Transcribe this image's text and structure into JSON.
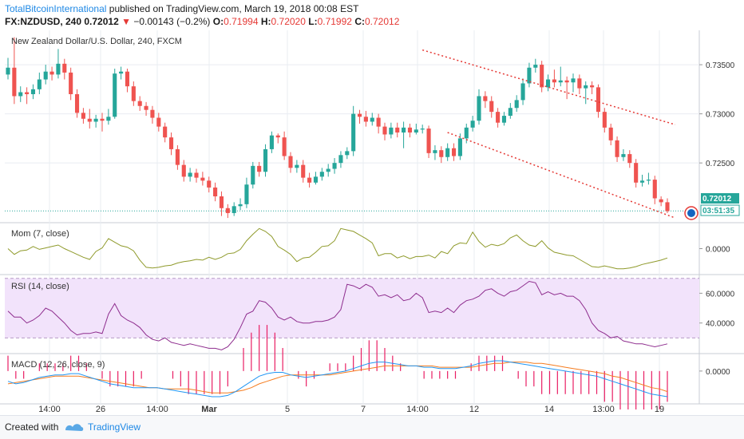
{
  "header": {
    "author": "TotalBitcoinInternational",
    "published": "published on TradingView.com, March 19, 2018 00:08 EST",
    "symbol": "FX:NZDUSD, 240",
    "last": "0.72012",
    "change_arrow": "▼",
    "change": "−0.00143 (−0.2%)",
    "o_label": "O:",
    "o": "0.71994",
    "h_label": "H:",
    "h": "0.72020",
    "l_label": "L:",
    "l": "0.71992",
    "c_label": "C:",
    "c": "0.72012"
  },
  "footer": {
    "created_with": "Created with",
    "brand": "TradingView"
  },
  "colors": {
    "up": "#26a69a",
    "down": "#ef5350",
    "grid": "#e9ecf2",
    "mom": "#8f9a2b",
    "rsi": "#8e2d8e",
    "rsi_band": "#f2e3fb",
    "macd": "#2196f3",
    "signal": "#f57c1f",
    "hist": "#e91e63",
    "trend": "#e53935",
    "price_line": "#26a69a",
    "price_tag": "#26a69a",
    "brand": "#1e88e5"
  },
  "chart_data": {
    "type": "candlestick",
    "title": "New Zealand Dollar/U.S. Dollar, 240, FXCM",
    "price_axis": {
      "ticks": [
        "0.73500",
        "0.73000",
        "0.72500"
      ],
      "last_price": "0.72012",
      "countdown": "03:51:35",
      "ylim": [
        0.719,
        0.7385
      ]
    },
    "x_axis": {
      "labels": [
        "14:00",
        "26",
        "14:00",
        "Mar",
        "5",
        "7",
        "14:00",
        "12",
        "14",
        "13:00",
        "19"
      ]
    },
    "candles": [
      {
        "o": 0.734,
        "c": 0.7347,
        "h": 0.7357,
        "l": 0.7335
      },
      {
        "o": 0.7347,
        "c": 0.7318,
        "h": 0.7378,
        "l": 0.731
      },
      {
        "o": 0.7318,
        "c": 0.7322,
        "h": 0.7328,
        "l": 0.7312
      },
      {
        "o": 0.7322,
        "c": 0.732,
        "h": 0.7327,
        "l": 0.731
      },
      {
        "o": 0.732,
        "c": 0.7325,
        "h": 0.733,
        "l": 0.7315
      },
      {
        "o": 0.7325,
        "c": 0.7335,
        "h": 0.7342,
        "l": 0.732
      },
      {
        "o": 0.7335,
        "c": 0.7343,
        "h": 0.735,
        "l": 0.733
      },
      {
        "o": 0.7343,
        "c": 0.734,
        "h": 0.7348,
        "l": 0.7334
      },
      {
        "o": 0.734,
        "c": 0.7351,
        "h": 0.7366,
        "l": 0.7336
      },
      {
        "o": 0.7351,
        "c": 0.7342,
        "h": 0.7356,
        "l": 0.7335
      },
      {
        "o": 0.7342,
        "c": 0.732,
        "h": 0.7347,
        "l": 0.7314
      },
      {
        "o": 0.732,
        "c": 0.7301,
        "h": 0.7325,
        "l": 0.7296
      },
      {
        "o": 0.7301,
        "c": 0.7295,
        "h": 0.7306,
        "l": 0.729
      },
      {
        "o": 0.7295,
        "c": 0.7292,
        "h": 0.7305,
        "l": 0.7285
      },
      {
        "o": 0.7292,
        "c": 0.7295,
        "h": 0.7299,
        "l": 0.7286
      },
      {
        "o": 0.7295,
        "c": 0.7293,
        "h": 0.7301,
        "l": 0.7282
      },
      {
        "o": 0.7293,
        "c": 0.7297,
        "h": 0.7305,
        "l": 0.7289
      },
      {
        "o": 0.7297,
        "c": 0.7341,
        "h": 0.7346,
        "l": 0.7295
      },
      {
        "o": 0.7341,
        "c": 0.7343,
        "h": 0.7348,
        "l": 0.7335
      },
      {
        "o": 0.7343,
        "c": 0.7328,
        "h": 0.7346,
        "l": 0.7322
      },
      {
        "o": 0.7328,
        "c": 0.7313,
        "h": 0.7333,
        "l": 0.7308
      },
      {
        "o": 0.7313,
        "c": 0.7308,
        "h": 0.7318,
        "l": 0.7303
      },
      {
        "o": 0.7308,
        "c": 0.7304,
        "h": 0.7312,
        "l": 0.7298
      },
      {
        "o": 0.7304,
        "c": 0.7296,
        "h": 0.7308,
        "l": 0.729
      },
      {
        "o": 0.7296,
        "c": 0.7287,
        "h": 0.7301,
        "l": 0.7282
      },
      {
        "o": 0.7287,
        "c": 0.7276,
        "h": 0.7291,
        "l": 0.7271
      },
      {
        "o": 0.7276,
        "c": 0.7264,
        "h": 0.7281,
        "l": 0.7258
      },
      {
        "o": 0.7264,
        "c": 0.7248,
        "h": 0.7268,
        "l": 0.7243
      },
      {
        "o": 0.7248,
        "c": 0.7236,
        "h": 0.7253,
        "l": 0.7231
      },
      {
        "o": 0.7236,
        "c": 0.724,
        "h": 0.7245,
        "l": 0.7231
      },
      {
        "o": 0.724,
        "c": 0.7235,
        "h": 0.7244,
        "l": 0.723
      },
      {
        "o": 0.7235,
        "c": 0.7232,
        "h": 0.7241,
        "l": 0.7227
      },
      {
        "o": 0.7232,
        "c": 0.7225,
        "h": 0.7236,
        "l": 0.722
      },
      {
        "o": 0.7225,
        "c": 0.7216,
        "h": 0.723,
        "l": 0.7211
      },
      {
        "o": 0.7216,
        "c": 0.7204,
        "h": 0.7221,
        "l": 0.7196
      },
      {
        "o": 0.7204,
        "c": 0.7199,
        "h": 0.7208,
        "l": 0.7194
      },
      {
        "o": 0.7199,
        "c": 0.7206,
        "h": 0.721,
        "l": 0.7196
      },
      {
        "o": 0.7206,
        "c": 0.7208,
        "h": 0.7214,
        "l": 0.7202
      },
      {
        "o": 0.7208,
        "c": 0.7228,
        "h": 0.7235,
        "l": 0.7204
      },
      {
        "o": 0.7228,
        "c": 0.7247,
        "h": 0.7251,
        "l": 0.7224
      },
      {
        "o": 0.7247,
        "c": 0.7241,
        "h": 0.7251,
        "l": 0.7236
      },
      {
        "o": 0.7241,
        "c": 0.7264,
        "h": 0.7269,
        "l": 0.7236
      },
      {
        "o": 0.7264,
        "c": 0.7278,
        "h": 0.7282,
        "l": 0.726
      },
      {
        "o": 0.7278,
        "c": 0.7276,
        "h": 0.728,
        "l": 0.727
      },
      {
        "o": 0.7276,
        "c": 0.7257,
        "h": 0.7282,
        "l": 0.7253
      },
      {
        "o": 0.7257,
        "c": 0.7245,
        "h": 0.7261,
        "l": 0.724
      },
      {
        "o": 0.7245,
        "c": 0.7248,
        "h": 0.7253,
        "l": 0.724
      },
      {
        "o": 0.7248,
        "c": 0.7235,
        "h": 0.7253,
        "l": 0.723
      },
      {
        "o": 0.7235,
        "c": 0.723,
        "h": 0.724,
        "l": 0.7225
      },
      {
        "o": 0.723,
        "c": 0.7236,
        "h": 0.7241,
        "l": 0.7228
      },
      {
        "o": 0.7236,
        "c": 0.7241,
        "h": 0.7245,
        "l": 0.7232
      },
      {
        "o": 0.7241,
        "c": 0.7244,
        "h": 0.7249,
        "l": 0.7236
      },
      {
        "o": 0.7244,
        "c": 0.725,
        "h": 0.7255,
        "l": 0.7239
      },
      {
        "o": 0.725,
        "c": 0.7258,
        "h": 0.7262,
        "l": 0.7245
      },
      {
        "o": 0.7258,
        "c": 0.7262,
        "h": 0.7266,
        "l": 0.7254
      },
      {
        "o": 0.7262,
        "c": 0.73,
        "h": 0.7308,
        "l": 0.7257
      },
      {
        "o": 0.73,
        "c": 0.7297,
        "h": 0.7304,
        "l": 0.729
      },
      {
        "o": 0.7297,
        "c": 0.7292,
        "h": 0.7303,
        "l": 0.7287
      },
      {
        "o": 0.7292,
        "c": 0.7296,
        "h": 0.7301,
        "l": 0.7288
      },
      {
        "o": 0.7296,
        "c": 0.7287,
        "h": 0.73,
        "l": 0.728
      },
      {
        "o": 0.7287,
        "c": 0.7279,
        "h": 0.7291,
        "l": 0.7273
      },
      {
        "o": 0.7279,
        "c": 0.7286,
        "h": 0.7291,
        "l": 0.7275
      },
      {
        "o": 0.7286,
        "c": 0.7281,
        "h": 0.7291,
        "l": 0.7276
      },
      {
        "o": 0.7281,
        "c": 0.7286,
        "h": 0.7292,
        "l": 0.7265
      },
      {
        "o": 0.7286,
        "c": 0.7281,
        "h": 0.729,
        "l": 0.7276
      },
      {
        "o": 0.7281,
        "c": 0.7284,
        "h": 0.729,
        "l": 0.7279
      },
      {
        "o": 0.7284,
        "c": 0.7285,
        "h": 0.7289,
        "l": 0.728
      },
      {
        "o": 0.7285,
        "c": 0.726,
        "h": 0.7288,
        "l": 0.7255
      },
      {
        "o": 0.726,
        "c": 0.7263,
        "h": 0.7268,
        "l": 0.7253
      },
      {
        "o": 0.7263,
        "c": 0.7256,
        "h": 0.7267,
        "l": 0.725
      },
      {
        "o": 0.7256,
        "c": 0.7265,
        "h": 0.727,
        "l": 0.7252
      },
      {
        "o": 0.7265,
        "c": 0.7257,
        "h": 0.727,
        "l": 0.7252
      },
      {
        "o": 0.7257,
        "c": 0.7275,
        "h": 0.728,
        "l": 0.7253
      },
      {
        "o": 0.7275,
        "c": 0.7286,
        "h": 0.729,
        "l": 0.727
      },
      {
        "o": 0.7286,
        "c": 0.7293,
        "h": 0.7298,
        "l": 0.7282
      },
      {
        "o": 0.7293,
        "c": 0.7318,
        "h": 0.7325,
        "l": 0.7289
      },
      {
        "o": 0.7318,
        "c": 0.7313,
        "h": 0.7323,
        "l": 0.7306
      },
      {
        "o": 0.7313,
        "c": 0.7302,
        "h": 0.7318,
        "l": 0.7296
      },
      {
        "o": 0.7302,
        "c": 0.7291,
        "h": 0.7306,
        "l": 0.7286
      },
      {
        "o": 0.7291,
        "c": 0.7298,
        "h": 0.7302,
        "l": 0.7288
      },
      {
        "o": 0.7298,
        "c": 0.7306,
        "h": 0.7311,
        "l": 0.7295
      },
      {
        "o": 0.7306,
        "c": 0.7314,
        "h": 0.7319,
        "l": 0.7302
      },
      {
        "o": 0.7314,
        "c": 0.7331,
        "h": 0.7336,
        "l": 0.7309
      },
      {
        "o": 0.7331,
        "c": 0.7347,
        "h": 0.7352,
        "l": 0.7327
      },
      {
        "o": 0.7347,
        "c": 0.735,
        "h": 0.7356,
        "l": 0.7342
      },
      {
        "o": 0.735,
        "c": 0.7327,
        "h": 0.7354,
        "l": 0.7322
      },
      {
        "o": 0.7327,
        "c": 0.7335,
        "h": 0.734,
        "l": 0.7323
      },
      {
        "o": 0.7335,
        "c": 0.7332,
        "h": 0.7345,
        "l": 0.7327
      },
      {
        "o": 0.7332,
        "c": 0.7334,
        "h": 0.7348,
        "l": 0.7328
      },
      {
        "o": 0.7334,
        "c": 0.7332,
        "h": 0.7338,
        "l": 0.7315
      },
      {
        "o": 0.7332,
        "c": 0.7336,
        "h": 0.7341,
        "l": 0.7322
      },
      {
        "o": 0.7336,
        "c": 0.7326,
        "h": 0.734,
        "l": 0.732
      },
      {
        "o": 0.7326,
        "c": 0.7329,
        "h": 0.7333,
        "l": 0.731
      },
      {
        "o": 0.7329,
        "c": 0.7327,
        "h": 0.7333,
        "l": 0.732
      },
      {
        "o": 0.7327,
        "c": 0.7302,
        "h": 0.733,
        "l": 0.7296
      },
      {
        "o": 0.7302,
        "c": 0.7286,
        "h": 0.7306,
        "l": 0.7281
      },
      {
        "o": 0.7286,
        "c": 0.7273,
        "h": 0.729,
        "l": 0.7268
      },
      {
        "o": 0.7273,
        "c": 0.7256,
        "h": 0.7277,
        "l": 0.7251
      },
      {
        "o": 0.7256,
        "c": 0.7259,
        "h": 0.7264,
        "l": 0.7252
      },
      {
        "o": 0.7259,
        "c": 0.725,
        "h": 0.7263,
        "l": 0.7245
      },
      {
        "o": 0.725,
        "c": 0.723,
        "h": 0.7254,
        "l": 0.7225
      },
      {
        "o": 0.723,
        "c": 0.7232,
        "h": 0.7238,
        "l": 0.7226
      },
      {
        "o": 0.7232,
        "c": 0.7233,
        "h": 0.724,
        "l": 0.7228
      },
      {
        "o": 0.7233,
        "c": 0.7214,
        "h": 0.7237,
        "l": 0.7208
      },
      {
        "o": 0.7213,
        "c": 0.721,
        "h": 0.7216,
        "l": 0.7206
      },
      {
        "o": 0.721,
        "c": 0.7201,
        "h": 0.7214,
        "l": 0.7199
      }
    ],
    "trendlines": [
      {
        "x1": 66,
        "y1": 0.7365,
        "x2": 106,
        "y2": 0.7289
      },
      {
        "x1": 70,
        "y1": 0.7281,
        "x2": 106,
        "y2": 0.7194
      }
    ],
    "indicators": {
      "mom": {
        "label": "Mom (7, close)",
        "ticks": [
          "0.0000"
        ],
        "ylim": [
          -0.0035,
          0.0035
        ],
        "values": [
          0.0,
          -0.0008,
          -0.0003,
          -0.0002,
          0.0003,
          -0.0001,
          0.0001,
          0.0003,
          0.0005,
          0.0,
          -0.0004,
          -0.0008,
          -0.0012,
          -0.0015,
          -0.0004,
          0.0001,
          0.0014,
          0.0009,
          0.0004,
          0.0002,
          -0.0003,
          -0.0016,
          -0.0026,
          -0.0027,
          -0.0026,
          -0.0024,
          -0.0023,
          -0.002,
          -0.0018,
          -0.0017,
          -0.0015,
          -0.0016,
          -0.0012,
          -0.0015,
          -0.0012,
          -0.0007,
          -0.0006,
          -0.0001,
          0.0011,
          0.002,
          0.0028,
          0.0024,
          0.0017,
          0.0003,
          -0.0002,
          -0.0008,
          -0.0018,
          -0.0013,
          -0.0012,
          -0.0005,
          0.0003,
          0.0004,
          0.0011,
          0.0028,
          0.0026,
          0.0024,
          0.0019,
          0.0014,
          0.0008,
          -0.001,
          -0.0007,
          -0.0007,
          -0.0013,
          -0.001,
          -0.0014,
          -0.0011,
          -0.0011,
          -0.0009,
          -0.0013,
          -0.0004,
          -0.0007,
          0.0004,
          0.0008,
          0.0007,
          0.0023,
          0.001,
          0.0002,
          0.0006,
          0.0004,
          0.0007,
          0.0015,
          0.0019,
          0.0011,
          0.0005,
          0.0003,
          0.0011,
          0.0001,
          -0.0005,
          -0.0007,
          -0.0009,
          -0.001,
          -0.0015,
          -0.002,
          -0.0025,
          -0.0026,
          -0.0024,
          -0.0026,
          -0.0028,
          -0.0028,
          -0.0027,
          -0.0025,
          -0.0022,
          -0.002,
          -0.0018,
          -0.0016,
          -0.0013
        ]
      },
      "rsi": {
        "label": "RSI (14, close)",
        "ticks": [
          "60.0000",
          "40.0000"
        ],
        "ylim": [
          20,
          72
        ],
        "band": [
          30,
          70
        ],
        "values": [
          48,
          44,
          44,
          40,
          42,
          45,
          50,
          48,
          44,
          40,
          35,
          32,
          33,
          33,
          34,
          33,
          46,
          53,
          45,
          42,
          40,
          37,
          32,
          29,
          28,
          30,
          27,
          26,
          25,
          26,
          25,
          24,
          23,
          23,
          22,
          24,
          29,
          37,
          46,
          48,
          55,
          54,
          50,
          44,
          42,
          44,
          41,
          40,
          40,
          41,
          41,
          42,
          44,
          49,
          66,
          65,
          63,
          66,
          64,
          58,
          59,
          57,
          59,
          55,
          56,
          60,
          57,
          47,
          48,
          47,
          50,
          47,
          52,
          55,
          56,
          58,
          62,
          63,
          60,
          58,
          61,
          62,
          65,
          68,
          67,
          59,
          61,
          59,
          60,
          58,
          58,
          55,
          49,
          40,
          35,
          33,
          30,
          31,
          28,
          27,
          26,
          26,
          25,
          24,
          25,
          26
        ]
      },
      "macd": {
        "label": "MACD (12, 26, close, 9)",
        "ticks": [
          "0.0000"
        ],
        "ylim": [
          -0.0025,
          0.0013
        ],
        "macd": [
          -0.0008,
          -0.001,
          -0.0009,
          -0.0007,
          -0.0005,
          -0.0004,
          -0.0003,
          -0.0003,
          -0.0002,
          -0.0002,
          -0.0004,
          -0.0006,
          -0.0008,
          -0.001,
          -0.0011,
          -0.0012,
          -0.0013,
          -0.0013,
          -0.0013,
          -0.0013,
          -0.0014,
          -0.0015,
          -0.0016,
          -0.0017,
          -0.0018,
          -0.0019,
          -0.002,
          -0.002,
          -0.0019,
          -0.0016,
          -0.0012,
          -0.0008,
          -0.0004,
          -0.0002,
          -0.0001,
          -0.0001,
          -0.0003,
          -0.0004,
          -0.0005,
          -0.0004,
          -0.0003,
          -0.0002,
          -0.0001,
          0.0,
          0.0002,
          0.0004,
          0.0006,
          0.0007,
          0.0007,
          0.0006,
          0.0005,
          0.0004,
          0.0004,
          0.0003,
          0.0003,
          0.0002,
          0.0002,
          0.0002,
          0.0003,
          0.0004,
          0.0006,
          0.0007,
          0.0008,
          0.0008,
          0.0007,
          0.0006,
          0.0005,
          0.0004,
          0.0003,
          0.0002,
          0.0001,
          0.0,
          -0.0001,
          -0.0002,
          -0.0003,
          -0.0004,
          -0.0006,
          -0.0008,
          -0.001,
          -0.0012,
          -0.0014,
          -0.0016,
          -0.0018,
          -0.0019,
          -0.002
        ],
        "signal": [
          -0.001,
          -0.0009,
          -0.0008,
          -0.0007,
          -0.0006,
          -0.0005,
          -0.0004,
          -0.0004,
          -0.0004,
          -0.0004,
          -0.0005,
          -0.0006,
          -0.0007,
          -0.0008,
          -0.0009,
          -0.001,
          -0.0011,
          -0.0012,
          -0.0013,
          -0.0013,
          -0.0014,
          -0.0014,
          -0.0014,
          -0.0014,
          -0.0015,
          -0.0016,
          -0.0017,
          -0.0017,
          -0.0017,
          -0.0016,
          -0.0015,
          -0.0013,
          -0.001,
          -0.0008,
          -0.0006,
          -0.0004,
          -0.0003,
          -0.0003,
          -0.0003,
          -0.0003,
          -0.0003,
          -0.0003,
          -0.0002,
          -0.0001,
          0.0,
          0.0001,
          0.0002,
          0.0003,
          0.0004,
          0.0004,
          0.0004,
          0.0004,
          0.0004,
          0.0004,
          0.0004,
          0.0003,
          0.0003,
          0.0003,
          0.0003,
          0.0003,
          0.0004,
          0.0005,
          0.0006,
          0.0006,
          0.0007,
          0.0007,
          0.0007,
          0.0006,
          0.0006,
          0.0005,
          0.0004,
          0.0003,
          0.0002,
          0.0001,
          0.0,
          -0.0001,
          -0.0002,
          -0.0004,
          -0.0005,
          -0.0007,
          -0.0009,
          -0.0011,
          -0.0013,
          -0.0014,
          -0.0016
        ],
        "hist_note": "histogram = macd − signal"
      }
    }
  }
}
